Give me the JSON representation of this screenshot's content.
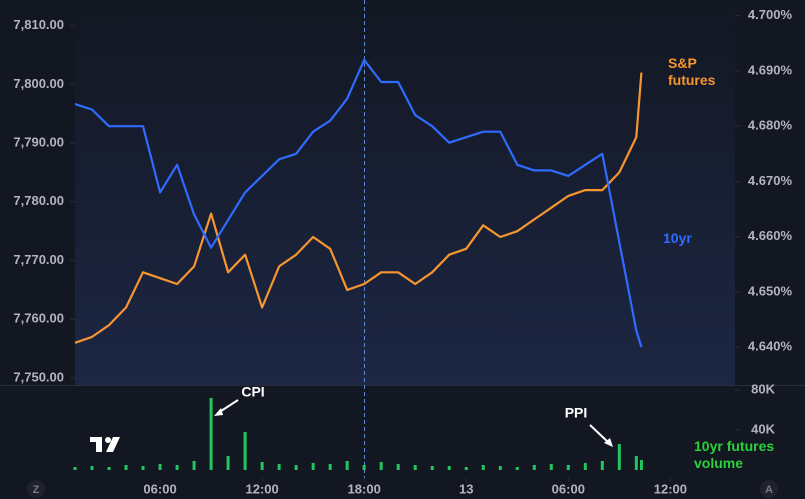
{
  "chart_data": [
    {
      "type": "line",
      "x": [
        1,
        2,
        3,
        4,
        5,
        6,
        7,
        8,
        9,
        10,
        11,
        12,
        13,
        14,
        15,
        16,
        17,
        18,
        19,
        20,
        21,
        22,
        23,
        24,
        25,
        26,
        27,
        28,
        29,
        30,
        31,
        32,
        33,
        34,
        34.3
      ],
      "xlim": [
        1,
        39.8
      ],
      "ylim": [
        7750,
        7813
      ],
      "yticks": [
        {
          "value": 7750,
          "label": "7,750.00"
        },
        {
          "value": 7760,
          "label": "7,760.00"
        },
        {
          "value": 7770,
          "label": "7,770.00"
        },
        {
          "value": 7780,
          "label": "7,780.00"
        },
        {
          "value": 7790,
          "label": "7,790.00"
        },
        {
          "value": 7800,
          "label": "7,800.00"
        },
        {
          "value": 7810,
          "label": "7,810.00"
        }
      ],
      "y2lim": [
        4.6344,
        4.7014
      ],
      "y2ticks": [
        {
          "value": 4.64,
          "label": "4.640%"
        },
        {
          "value": 4.65,
          "label": "4.650%"
        },
        {
          "value": 4.66,
          "label": "4.660%"
        },
        {
          "value": 4.67,
          "label": "4.670%"
        },
        {
          "value": 4.68,
          "label": "4.680%"
        },
        {
          "value": 4.69,
          "label": "4.690%"
        },
        {
          "value": 4.7,
          "label": "4.700%"
        }
      ],
      "series": [
        {
          "name": "S&P futures",
          "color": "#f7962f",
          "axis": "y",
          "values": [
            7756,
            7757,
            7759,
            7762,
            7768,
            7767,
            7766,
            7769,
            7778,
            7768,
            7771,
            7762,
            7769,
            7771,
            7774,
            7772,
            7765,
            7766,
            7768,
            7768,
            7766,
            7768,
            7771,
            7772,
            7776,
            7774,
            7775,
            7777,
            7779,
            7781,
            7782,
            7782,
            7785,
            7791,
            7802
          ]
        },
        {
          "name": "10yr",
          "color": "#2f6bff",
          "axis": "y2",
          "values": [
            4.684,
            4.683,
            4.68,
            4.68,
            4.68,
            4.668,
            4.673,
            4.664,
            4.658,
            4.663,
            4.668,
            4.671,
            4.674,
            4.675,
            4.679,
            4.681,
            4.685,
            4.692,
            4.688,
            4.688,
            4.682,
            4.68,
            4.677,
            4.678,
            4.679,
            4.679,
            4.673,
            4.672,
            4.672,
            4.671,
            4.673,
            4.675,
            4.659,
            4.643,
            4.64
          ]
        }
      ],
      "annotations": [
        "CPI",
        "PPI"
      ]
    },
    {
      "type": "bar",
      "title": "10yr futures volume",
      "color": "#22c55e",
      "x": [
        1,
        2,
        3,
        4,
        5,
        6,
        7,
        8,
        9,
        10,
        11,
        12,
        13,
        14,
        15,
        16,
        17,
        18,
        19,
        20,
        21,
        22,
        23,
        24,
        25,
        26,
        27,
        28,
        29,
        30,
        31,
        32,
        33,
        34,
        34.3
      ],
      "xlim": [
        1,
        39.8
      ],
      "values": [
        3000,
        4000,
        3000,
        5000,
        4000,
        6000,
        5000,
        9000,
        72000,
        14000,
        38000,
        8000,
        6000,
        5000,
        7000,
        6000,
        9000,
        5000,
        8000,
        6000,
        5000,
        4000,
        4000,
        3000,
        5000,
        4000,
        3000,
        5000,
        6000,
        5000,
        7000,
        9000,
        26000,
        14000,
        10000
      ],
      "ylim": [
        0,
        82000
      ],
      "yticks": [
        {
          "value": 40000,
          "label": "40K"
        },
        {
          "value": 80000,
          "label": "80K"
        }
      ],
      "xticks": [
        {
          "value": 6,
          "label": "06:00"
        },
        {
          "value": 12,
          "label": "12:00"
        },
        {
          "value": 18,
          "label": "18:00"
        },
        {
          "value": 24,
          "label": "13"
        },
        {
          "value": 30,
          "label": "06:00"
        },
        {
          "value": 36,
          "label": "12:00"
        }
      ]
    }
  ],
  "ui": {
    "buttons": [
      "Z",
      "A"
    ]
  }
}
